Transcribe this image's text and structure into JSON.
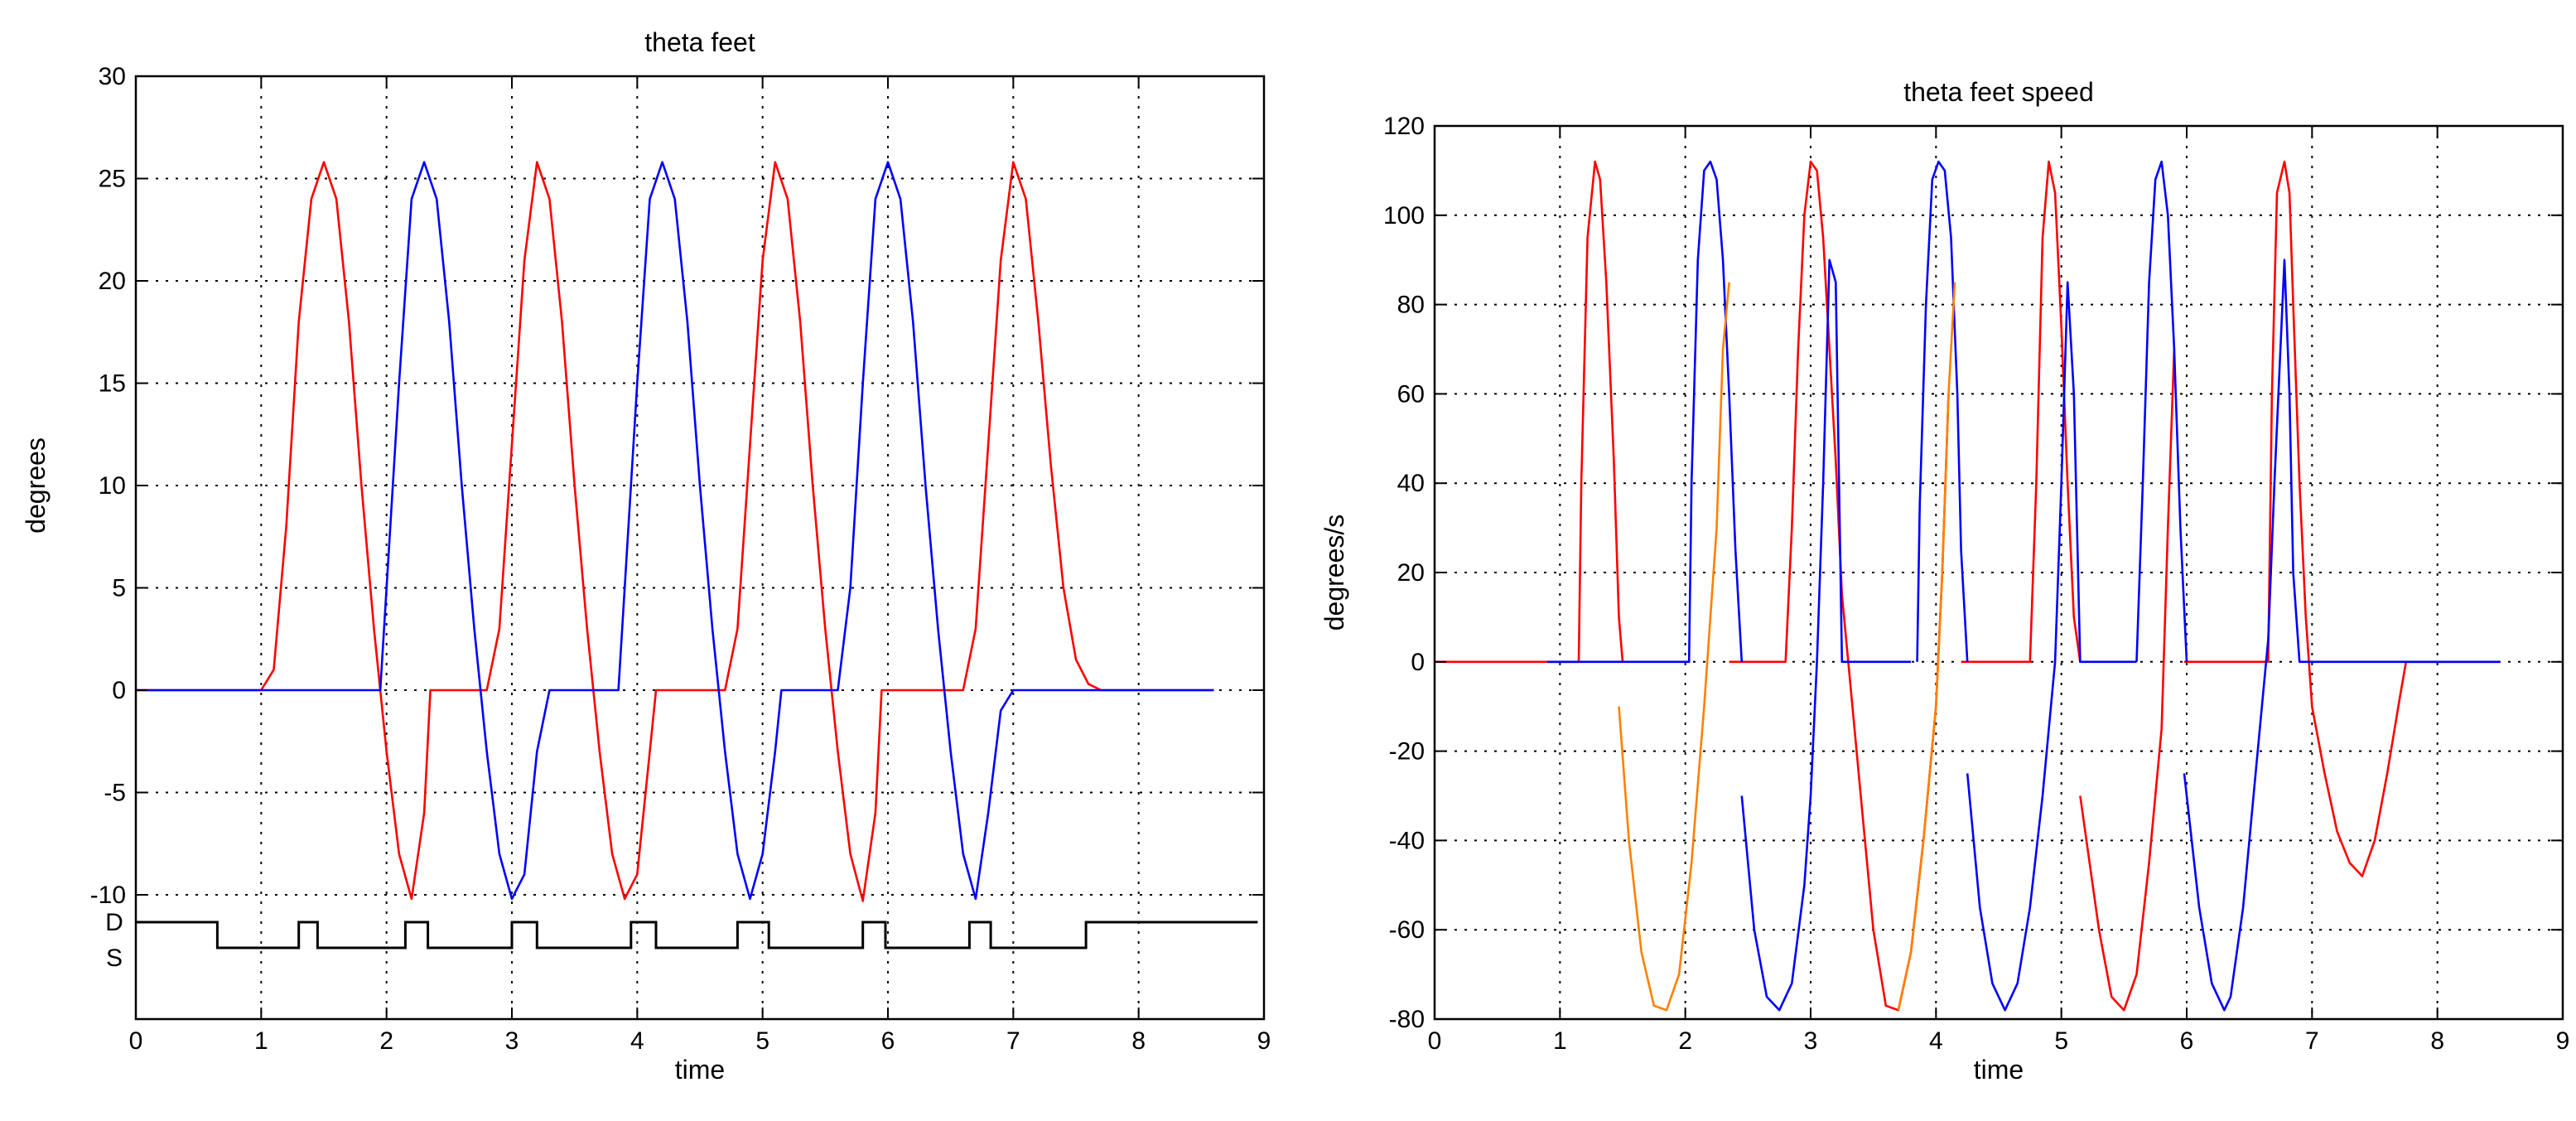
{
  "chart_data": [
    {
      "type": "line",
      "title": "theta feet",
      "xlabel": "time",
      "ylabel": "degrees",
      "xlim": [
        0,
        9
      ],
      "ylim": [
        -10,
        30
      ],
      "x_ticks": [
        0,
        1,
        2,
        3,
        4,
        5,
        6,
        7,
        8,
        9
      ],
      "y_ticks": [
        30,
        25,
        20,
        15,
        10,
        5,
        0,
        -5,
        -10
      ],
      "grid": true,
      "series": [
        {
          "color": "#ff0000",
          "x": [
            0,
            1.0,
            1.1,
            1.2,
            1.3,
            1.4,
            1.5,
            1.6,
            1.7,
            1.8,
            1.9,
            2.0,
            2.1,
            2.2,
            2.3,
            2.35,
            2.8,
            2.9,
            3.0,
            3.1,
            3.2,
            3.3,
            3.4,
            3.5,
            3.6,
            3.7,
            3.8,
            3.9,
            4.0,
            4.1,
            4.15,
            4.7,
            4.8,
            4.9,
            5.0,
            5.1,
            5.2,
            5.3,
            5.4,
            5.5,
            5.6,
            5.7,
            5.8,
            5.9,
            5.95,
            6.6,
            6.7,
            6.8,
            6.9,
            7.0,
            7.1,
            7.2,
            7.3,
            7.4,
            7.5,
            7.6,
            7.7,
            8.6
          ],
          "y": [
            0,
            0,
            1,
            8,
            18,
            24,
            25.8,
            24,
            18,
            10,
            3,
            -3,
            -8,
            -10.2,
            -6,
            0,
            0,
            3,
            12,
            21,
            25.8,
            24,
            18,
            10,
            3,
            -3,
            -8,
            -10.2,
            -9,
            -3,
            0,
            0,
            3,
            12,
            21,
            25.8,
            24,
            18,
            10,
            3,
            -3,
            -8,
            -10.3,
            -6,
            0,
            0,
            3,
            12,
            21,
            25.8,
            24,
            18,
            11,
            5,
            1.5,
            0.3,
            0,
            0
          ]
        },
        {
          "color": "#0000ff",
          "x": [
            0,
            1.95,
            2.0,
            2.1,
            2.2,
            2.3,
            2.4,
            2.5,
            2.6,
            2.7,
            2.8,
            2.9,
            3.0,
            3.1,
            3.2,
            3.3,
            3.85,
            3.9,
            4.0,
            4.1,
            4.2,
            4.3,
            4.4,
            4.5,
            4.6,
            4.7,
            4.8,
            4.9,
            5.0,
            5.1,
            5.15,
            5.6,
            5.7,
            5.8,
            5.9,
            6.0,
            6.1,
            6.2,
            6.3,
            6.4,
            6.5,
            6.6,
            6.7,
            6.8,
            6.9,
            7.0,
            8.6
          ],
          "y": [
            0,
            0,
            5,
            15,
            24,
            25.8,
            24,
            18,
            10,
            3,
            -3,
            -8,
            -10.2,
            -9,
            -3,
            0,
            0,
            5,
            15,
            24,
            25.8,
            24,
            18,
            10,
            3,
            -3,
            -8,
            -10.2,
            -8,
            -3,
            0,
            0,
            5,
            15,
            24,
            25.8,
            24,
            18,
            10,
            3,
            -3,
            -8,
            -10.2,
            -6,
            -1,
            0,
            0
          ]
        }
      ],
      "ds_indicator": {
        "labels": [
          "D",
          "S"
        ],
        "x": [
          0,
          0.65,
          0.65,
          1.3,
          1.3,
          1.45,
          1.45,
          2.15,
          2.15,
          2.33,
          2.33,
          3.0,
          3.0,
          3.2,
          3.2,
          3.95,
          3.95,
          4.15,
          4.15,
          4.8,
          4.8,
          5.05,
          5.05,
          5.8,
          5.8,
          5.98,
          5.98,
          6.65,
          6.65,
          6.82,
          6.82,
          7.58,
          7.58,
          8.95
        ],
        "state": [
          "D",
          "D",
          "S",
          "S",
          "D",
          "D",
          "S",
          "S",
          "D",
          "D",
          "S",
          "S",
          "D",
          "D",
          "S",
          "S",
          "D",
          "D",
          "S",
          "S",
          "D",
          "D",
          "S",
          "S",
          "D",
          "D",
          "S",
          "S",
          "D",
          "D",
          "S",
          "S",
          "D",
          "D"
        ]
      }
    },
    {
      "type": "line",
      "title": "theta feet speed",
      "xlabel": "time",
      "ylabel": "degrees/s",
      "xlim": [
        0,
        9
      ],
      "ylim": [
        -80,
        120
      ],
      "x_ticks": [
        0,
        1,
        2,
        3,
        4,
        5,
        6,
        7,
        8,
        9
      ],
      "y_ticks": [
        120,
        100,
        80,
        60,
        40,
        20,
        0,
        -20,
        -40,
        -60,
        -80
      ],
      "grid": true,
      "series": [
        {
          "color": "#ff0000",
          "segments": [
            {
              "x": [
                0,
                1.15,
                1.17,
                1.22,
                1.28,
                1.32,
                1.37,
                1.43,
                1.47,
                1.5
              ],
              "y": [
                0,
                0,
                40,
                95,
                112,
                108,
                85,
                45,
                10,
                0
              ]
            },
            {
              "x": [
                2.35,
                2.8,
                2.85,
                2.9,
                2.95,
                3.0,
                3.05,
                3.1,
                3.15,
                3.2,
                3.25,
                3.3
              ],
              "y": [
                0,
                0,
                30,
                70,
                100,
                112,
                110,
                95,
                70,
                45,
                15,
                0
              ]
            },
            {
              "x": [
                3.3,
                3.4,
                3.5,
                3.6,
                3.7,
                3.8,
                3.9,
                4.0,
                4.05,
                4.1
              ],
              "y": [
                0,
                -30,
                -60,
                -77,
                -78,
                -65,
                -40,
                -10,
                20,
                60
              ]
            },
            {
              "x": [
                4.2,
                4.75,
                4.8,
                4.85,
                4.9,
                4.95,
                5.0,
                5.05,
                5.1,
                5.15
              ],
              "y": [
                0,
                0,
                40,
                95,
                112,
                105,
                75,
                40,
                10,
                0
              ]
            },
            {
              "x": [
                5.15,
                5.3,
                5.4,
                5.5,
                5.6,
                5.7,
                5.8,
                5.85,
                5.9
              ],
              "y": [
                -30,
                -60,
                -75,
                -78,
                -70,
                -45,
                -15,
                30,
                70
              ]
            },
            {
              "x": [
                5.98,
                6.65,
                6.68,
                6.72,
                6.78,
                6.82,
                6.85,
                6.9,
                6.95,
                7.0,
                7.1,
                7.2,
                7.3,
                7.4,
                7.5,
                7.6,
                7.7,
                7.75,
                8.5
              ],
              "y": [
                0,
                0,
                60,
                105,
                112,
                105,
                80,
                40,
                10,
                -10,
                -25,
                -38,
                -45,
                -48,
                -40,
                -25,
                -8,
                0,
                0
              ]
            }
          ]
        },
        {
          "color": "#0000ff",
          "segments": [
            {
              "x": [
                0.9,
                2.03,
                2.05,
                2.1,
                2.15,
                2.2,
                2.25,
                2.3,
                2.35,
                2.4,
                2.45
              ],
              "y": [
                0,
                0,
                40,
                90,
                110,
                112,
                108,
                90,
                60,
                25,
                0
              ]
            },
            {
              "x": [
                2.45,
                2.55,
                2.65,
                2.75,
                2.85,
                2.95,
                3.0,
                3.05,
                3.1,
                3.15,
                3.2,
                3.25,
                3.3,
                3.8
              ],
              "y": [
                -30,
                -60,
                -75,
                -78,
                -72,
                -50,
                -30,
                0,
                40,
                90,
                85,
                0,
                0,
                0
              ]
            },
            {
              "x": [
                3.85,
                3.87,
                3.92,
                3.97,
                4.02,
                4.07,
                4.12,
                4.17,
                4.2,
                4.25
              ],
              "y": [
                0,
                35,
                80,
                108,
                112,
                110,
                95,
                60,
                25,
                0
              ]
            },
            {
              "x": [
                4.25,
                4.35,
                4.45,
                4.55,
                4.65,
                4.75,
                4.85,
                4.95,
                5.0,
                5.05,
                5.1,
                5.15,
                5.6
              ],
              "y": [
                -25,
                -55,
                -72,
                -78,
                -72,
                -55,
                -30,
                0,
                40,
                85,
                60,
                0,
                0
              ]
            },
            {
              "x": [
                5.6,
                5.65,
                5.7,
                5.75,
                5.8,
                5.85,
                5.9,
                5.95,
                6.0
              ],
              "y": [
                0,
                40,
                85,
                108,
                112,
                100,
                70,
                30,
                0
              ]
            },
            {
              "x": [
                5.98,
                6.1,
                6.2,
                6.3,
                6.35,
                6.45,
                6.55,
                6.65,
                6.7,
                6.78,
                6.82,
                6.85,
                6.9,
                6.95,
                7.0,
                8.5
              ],
              "y": [
                -25,
                -55,
                -72,
                -78,
                -75,
                -55,
                -25,
                5,
                40,
                90,
                60,
                20,
                0,
                0,
                0,
                0
              ]
            }
          ]
        },
        {
          "color": "#ff8000",
          "segments": [
            {
              "x": [
                1.47,
                1.55,
                1.65,
                1.75,
                1.85,
                1.95,
                2.05,
                2.15,
                2.25,
                2.3,
                2.35
              ],
              "y": [
                -10,
                -40,
                -65,
                -77,
                -78,
                -70,
                -45,
                -10,
                30,
                70,
                85
              ]
            },
            {
              "x": [
                3.7,
                3.8,
                3.9,
                4.0,
                4.05,
                4.1,
                4.15
              ],
              "y": [
                -78,
                -65,
                -40,
                -10,
                20,
                60,
                85
              ]
            }
          ]
        }
      ]
    }
  ]
}
